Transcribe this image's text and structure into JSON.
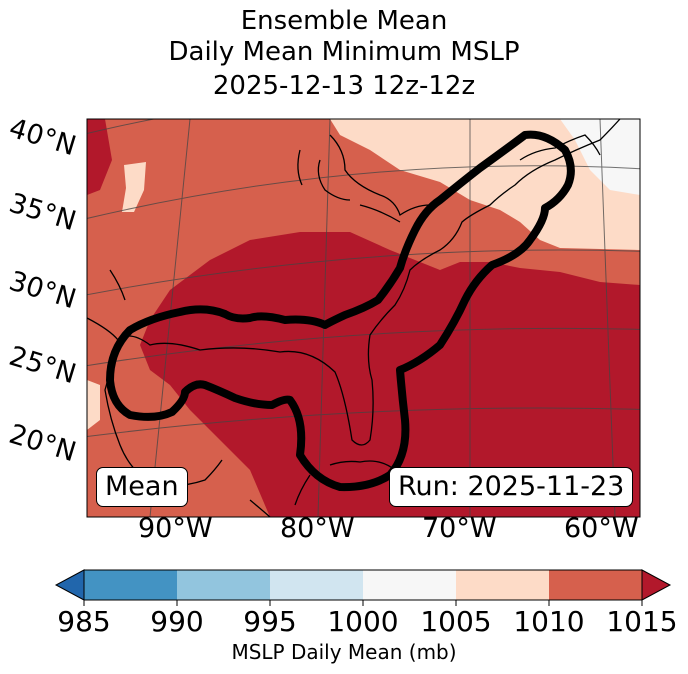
{
  "title": {
    "line1": "Ensemble Mean",
    "line2": "Daily Mean Minimum MSLP",
    "line3": "2025-12-13 12z-12z"
  },
  "labels": {
    "left_box": "Mean",
    "right_box": "Run: 2025-11-23"
  },
  "lat_labels": [
    "40°N",
    "35°N",
    "30°N",
    "25°N",
    "20°N"
  ],
  "lon_labels": [
    "90°W",
    "80°W",
    "70°W",
    "60°W"
  ],
  "colorbar": {
    "ticks": [
      "985",
      "990",
      "995",
      "1000",
      "1005",
      "1010",
      "1015"
    ],
    "label": "MSLP Daily Mean (mb)",
    "colors": [
      "#2166ac",
      "#4393c3",
      "#92c5de",
      "#d1e5f0",
      "#f7f7f7",
      "#fddbc7",
      "#d6604d",
      "#b2182b"
    ]
  }
}
